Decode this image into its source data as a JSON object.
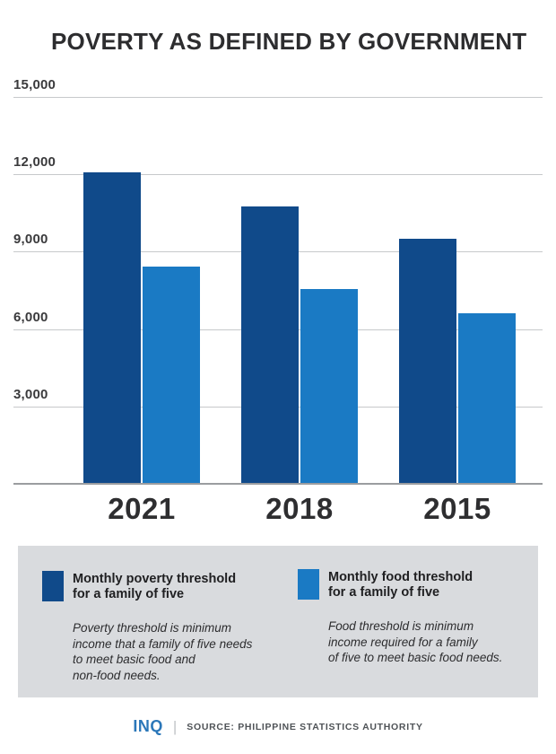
{
  "title": "POVERTY AS DEFINED BY GOVERNMENT",
  "colors": {
    "poverty": "#104a8a",
    "food": "#1a7ac4",
    "grid": "#c7c9cb",
    "baseline": "#9b9da0",
    "legend_bg": "#d9dbde",
    "inq_blue": "#2b77b9"
  },
  "chart_data": {
    "type": "bar",
    "title": "POVERTY AS DEFINED BY GOVERNMENT",
    "categories": [
      "2021",
      "2018",
      "2015"
    ],
    "series": [
      {
        "name": "Monthly poverty threshold for a family of five",
        "color_key": "poverty",
        "values": [
          12030,
          10727,
          9452
        ]
      },
      {
        "name": "Monthly food threshold for a family of five",
        "color_key": "food",
        "values": [
          8379,
          7528,
          6590
        ]
      }
    ],
    "xlabel": "",
    "ylabel": "",
    "ylim": [
      0,
      15000
    ],
    "ytick_interval": 3000,
    "ytick_labels": [
      "3,000",
      "6,000",
      "9,000",
      "12,000",
      "15,000"
    ],
    "grid": true,
    "legend_position": "bottom"
  },
  "legend": {
    "items": [
      {
        "title": "Monthly poverty threshold\nfor a family of five",
        "description": "Poverty threshold is minimum\nincome that a family of five needs\nto meet basic food and\nnon-food needs.",
        "color_key": "poverty"
      },
      {
        "title": "Monthly food threshold\n for a family of five",
        "description": "Food threshold is minimum\nincome required for a family\nof five to meet basic food needs.",
        "color_key": "food"
      }
    ]
  },
  "footer": {
    "logo": "INQ",
    "divider": "|",
    "source": "SOURCE: PHILIPPINE STATISTICS AUTHORITY"
  }
}
